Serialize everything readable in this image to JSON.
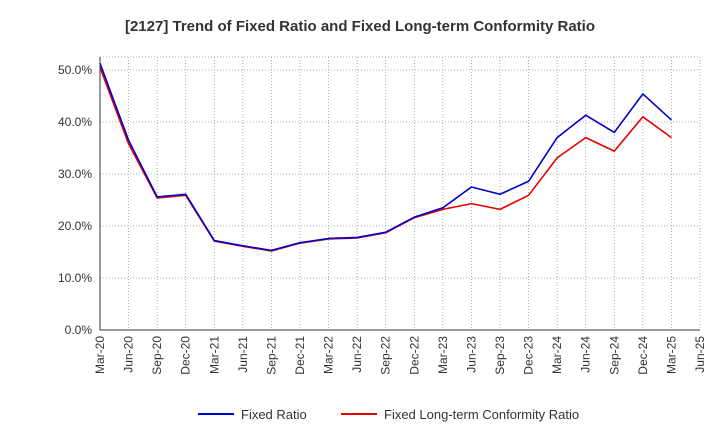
{
  "chart_data": {
    "type": "line",
    "title": "[2127]  Trend of Fixed Ratio and Fixed Long-term Conformity Ratio",
    "xlabel": "",
    "ylabel": "",
    "x": [
      "Mar-20",
      "Jun-20",
      "Sep-20",
      "Dec-20",
      "Mar-21",
      "Jun-21",
      "Sep-21",
      "Dec-21",
      "Mar-22",
      "Jun-22",
      "Sep-22",
      "Dec-22",
      "Mar-23",
      "Jun-23",
      "Sep-23",
      "Dec-23",
      "Mar-24",
      "Jun-24",
      "Sep-24",
      "Dec-24",
      "Mar-25",
      "Jun-25"
    ],
    "ylim": [
      0,
      52.5
    ],
    "yticks": [
      0,
      10,
      20,
      30,
      40,
      50
    ],
    "ytick_labels": [
      "0.0%",
      "10.0%",
      "20.0%",
      "30.0%",
      "40.0%",
      "50.0%"
    ],
    "grid": true,
    "legend_position": "bottom",
    "series": [
      {
        "name": "Fixed Ratio",
        "color": "#0000cc",
        "values": [
          51.3,
          36.5,
          25.6,
          26.1,
          17.2,
          16.2,
          15.3,
          16.8,
          17.6,
          17.8,
          18.8,
          21.7,
          23.5,
          27.5,
          26.1,
          28.6,
          37.0,
          41.3,
          38.0,
          45.4,
          40.4,
          null
        ]
      },
      {
        "name": "Fixed Long-term Conformity Ratio",
        "color": "#e60000",
        "values": [
          50.5,
          35.8,
          25.4,
          25.9,
          17.1,
          16.1,
          15.2,
          16.7,
          17.5,
          17.7,
          18.7,
          21.6,
          23.2,
          24.3,
          23.2,
          25.9,
          33.1,
          37.0,
          34.4,
          41.0,
          37.0,
          null
        ]
      }
    ]
  }
}
